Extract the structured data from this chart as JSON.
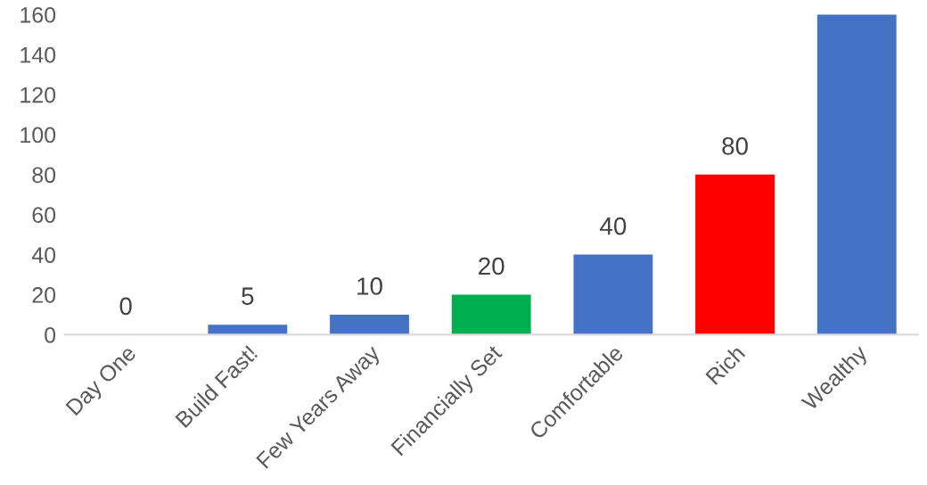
{
  "chart_data": {
    "type": "bar",
    "categories": [
      "Day One",
      "Build Fast!",
      "Few Years Away",
      "Financially Set",
      "Comfortable",
      "Rich",
      "Wealthy"
    ],
    "values": [
      0,
      5,
      10,
      20,
      40,
      80,
      160
    ],
    "colors": [
      "#4472c4",
      "#4472c4",
      "#4472c4",
      "#00b050",
      "#4472c4",
      "#ff0000",
      "#4472c4"
    ],
    "value_labels": [
      "0",
      "5",
      "10",
      "20",
      "40",
      "80",
      null
    ],
    "ylim": [
      0,
      160
    ],
    "yticks": [
      0,
      20,
      40,
      60,
      80,
      100,
      120,
      140,
      160
    ],
    "grid": false
  }
}
